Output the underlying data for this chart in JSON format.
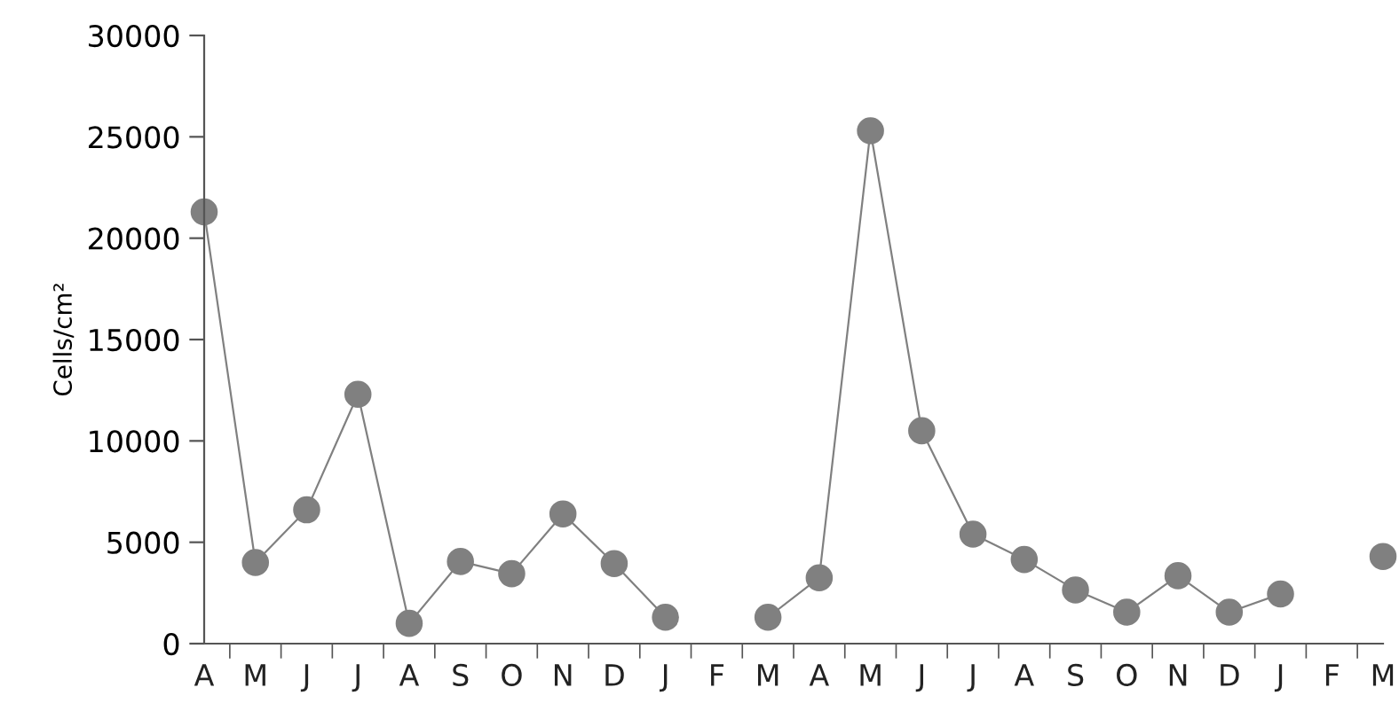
{
  "chart_data": {
    "type": "line",
    "ylabel": "Cells/cm²",
    "categories": [
      "A",
      "M",
      "J",
      "J",
      "A",
      "S",
      "O",
      "N",
      "D",
      "J",
      "F",
      "M",
      "A",
      "M",
      "J",
      "J",
      "A",
      "S",
      "O",
      "N",
      "D",
      "J",
      "F",
      "M"
    ],
    "series": [
      {
        "color": "#808080",
        "values": [
          21300,
          4000,
          6600,
          12300,
          1000,
          4050,
          3450,
          6400,
          3950,
          1300,
          null,
          1300,
          3250,
          25300,
          10500,
          5400,
          4150,
          2650,
          1550,
          3350,
          1550,
          2450,
          null,
          4300
        ]
      }
    ],
    "ylim": [
      0,
      30000
    ],
    "yticks": [
      0,
      5000,
      10000,
      15000,
      20000,
      25000,
      30000
    ],
    "grid": false,
    "legend": false,
    "marker": "circle",
    "line_style": "solid"
  }
}
